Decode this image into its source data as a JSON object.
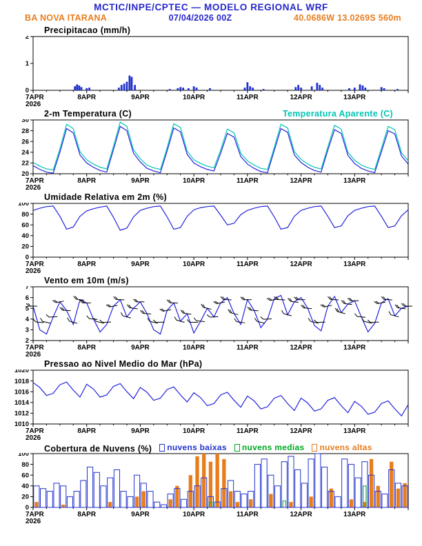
{
  "header": {
    "title": "MCTIC/INPE/CPTEC — MODELO REGIONAL WRF",
    "run": "07/04/2026 00Z",
    "station": "BA NOVA ITARANA",
    "location": "40.0686W 13.0269S 560m",
    "colors": {
      "blue": "#2525cc",
      "orange": "#e87d1e"
    }
  },
  "axis": {
    "x_major_labels": [
      "7APR",
      "8APR",
      "9APR",
      "10APR",
      "11APR",
      "12APR",
      "13APR"
    ],
    "year": "2026",
    "x_range_days": [
      0,
      7
    ]
  },
  "chart_data": [
    {
      "name": "precipitation",
      "title": "Precipitacao (mm/h)",
      "type": "bar",
      "ylim": [
        0,
        2
      ],
      "yticks": [
        0,
        1,
        2
      ],
      "series": [
        {
          "name": "precip",
          "color": "#2233cc",
          "points": [
            [
              0.78,
              0.15
            ],
            [
              0.82,
              0.22
            ],
            [
              0.86,
              0.18
            ],
            [
              0.9,
              0.12
            ],
            [
              1.0,
              0.08
            ],
            [
              1.05,
              0.1
            ],
            [
              1.6,
              0.1
            ],
            [
              1.65,
              0.2
            ],
            [
              1.7,
              0.25
            ],
            [
              1.75,
              0.32
            ],
            [
              1.8,
              0.55
            ],
            [
              1.84,
              0.5
            ],
            [
              1.9,
              0.2
            ],
            [
              2.55,
              0.05
            ],
            [
              2.7,
              0.08
            ],
            [
              2.75,
              0.12
            ],
            [
              2.8,
              0.1
            ],
            [
              2.9,
              0.08
            ],
            [
              3.0,
              0.15
            ],
            [
              3.05,
              0.1
            ],
            [
              3.3,
              0.08
            ],
            [
              3.95,
              0.1
            ],
            [
              4.0,
              0.3
            ],
            [
              4.05,
              0.15
            ],
            [
              4.1,
              0.1
            ],
            [
              4.3,
              0.05
            ],
            [
              4.9,
              0.12
            ],
            [
              4.95,
              0.2
            ],
            [
              5.0,
              0.1
            ],
            [
              5.2,
              0.15
            ],
            [
              5.3,
              0.28
            ],
            [
              5.35,
              0.2
            ],
            [
              5.4,
              0.1
            ],
            [
              5.9,
              0.08
            ],
            [
              6.0,
              0.1
            ],
            [
              6.1,
              0.22
            ],
            [
              6.15,
              0.18
            ],
            [
              6.2,
              0.1
            ],
            [
              6.5,
              0.12
            ],
            [
              6.55,
              0.08
            ],
            [
              6.8,
              0.05
            ]
          ]
        }
      ]
    },
    {
      "name": "temperature",
      "title": "2-m Temperatura (C)",
      "title2": "Temperatura Aparente (C)",
      "type": "line",
      "ylim": [
        20,
        30
      ],
      "yticks": [
        20,
        22,
        24,
        26,
        28,
        30
      ],
      "x_step_days": 0.125,
      "series": [
        {
          "name": "t2m",
          "color": "#2222dd",
          "values": [
            21.5,
            20.8,
            20.3,
            20.1,
            24.0,
            28.4,
            27.6,
            23.5,
            22.0,
            21.2,
            20.6,
            20.3,
            24.5,
            28.8,
            28.0,
            23.8,
            22.2,
            21.0,
            20.5,
            20.2,
            24.2,
            28.5,
            27.8,
            23.6,
            22.0,
            21.3,
            20.8,
            20.5,
            23.8,
            27.5,
            26.8,
            23.2,
            21.8,
            21.0,
            20.4,
            20.2,
            24.3,
            28.4,
            27.7,
            23.5,
            22.1,
            21.2,
            20.6,
            20.3,
            24.4,
            28.2,
            27.5,
            23.4,
            21.9,
            21.0,
            20.5,
            20.2,
            24.1,
            28.0,
            27.4,
            23.3,
            21.8
          ]
        },
        {
          "name": "apparent",
          "color": "#00c4b4",
          "values": [
            22.1,
            21.4,
            20.9,
            20.7,
            24.6,
            29.2,
            28.4,
            24.1,
            22.6,
            21.8,
            21.2,
            20.9,
            25.1,
            29.6,
            28.8,
            24.4,
            22.8,
            21.6,
            21.1,
            20.8,
            24.8,
            29.3,
            28.6,
            24.2,
            22.6,
            21.9,
            21.4,
            21.1,
            24.4,
            28.3,
            27.6,
            23.8,
            22.4,
            21.6,
            21.0,
            20.8,
            24.9,
            29.2,
            28.5,
            24.1,
            22.7,
            21.8,
            21.2,
            20.9,
            25.0,
            29.0,
            28.3,
            24.0,
            22.5,
            21.6,
            21.1,
            20.8,
            24.7,
            28.8,
            28.2,
            23.9,
            22.4
          ]
        }
      ]
    },
    {
      "name": "humidity",
      "title": "Umidade Relativa em 2m (%)",
      "type": "line",
      "ylim": [
        0,
        100
      ],
      "yticks": [
        0,
        20,
        40,
        60,
        80,
        100
      ],
      "x_step_days": 0.125,
      "series": [
        {
          "name": "rh2m",
          "color": "#2222dd",
          "values": [
            87,
            91,
            94,
            95,
            76,
            52,
            56,
            76,
            86,
            90,
            93,
            95,
            74,
            50,
            54,
            75,
            87,
            91,
            94,
            95,
            75,
            52,
            55,
            76,
            88,
            92,
            94,
            95,
            78,
            60,
            63,
            79,
            87,
            91,
            94,
            95,
            75,
            52,
            55,
            76,
            87,
            91,
            94,
            95,
            76,
            55,
            58,
            77,
            87,
            91,
            94,
            95,
            76,
            55,
            58,
            77,
            88
          ]
        }
      ]
    },
    {
      "name": "wind",
      "title": "Vento em 10m (m/s)",
      "type": "wind",
      "ylim": [
        2,
        7
      ],
      "yticks": [
        2,
        3,
        4,
        5,
        6,
        7
      ],
      "x_step_days": 0.125,
      "series": [
        {
          "name": "wind10m",
          "color": "#2222dd",
          "values": [
            5.2,
            3.0,
            2.6,
            4.2,
            5.6,
            4.8,
            3.5,
            5.8,
            5.5,
            4.0,
            2.8,
            3.5,
            5.2,
            5.8,
            4.2,
            5.0,
            5.6,
            4.5,
            3.0,
            2.6,
            4.8,
            5.5,
            3.8,
            4.5,
            2.7,
            3.8,
            5.0,
            4.2,
            5.5,
            6.0,
            4.5,
            3.5,
            5.8,
            4.8,
            3.2,
            4.0,
            5.9,
            6.2,
            4.4,
            5.6,
            6.0,
            5.0,
            3.4,
            2.9,
            5.2,
            6.1,
            4.6,
            5.4,
            5.7,
            4.2,
            2.8,
            3.6,
            5.5,
            5.9,
            4.3,
            5.0,
            5.2
          ]
        }
      ],
      "barb_dirs": [
        95,
        100,
        108,
        92,
        84,
        98,
        110,
        103,
        95,
        100,
        108,
        92,
        84,
        98,
        110,
        103,
        95,
        100,
        108,
        92,
        84,
        98,
        110,
        103,
        95,
        100,
        108,
        92,
        84,
        98,
        110,
        103,
        95,
        100,
        108,
        92,
        84,
        98,
        110,
        103,
        95,
        100,
        108,
        92,
        84,
        98,
        110,
        103,
        95,
        100,
        108,
        92,
        84,
        98,
        110,
        103,
        95
      ]
    },
    {
      "name": "pressure",
      "title": "Pressao ao Nivel Medio do Mar (hPa)",
      "type": "line",
      "ylim": [
        1010,
        1020
      ],
      "yticks": [
        1010,
        1012,
        1014,
        1016,
        1018,
        1020
      ],
      "x_step_days": 0.125,
      "series": [
        {
          "name": "mslp",
          "color": "#2222dd",
          "values": [
            1017.7,
            1016.8,
            1015.3,
            1015.7,
            1017.3,
            1017.8,
            1016.3,
            1015.0,
            1017.4,
            1016.5,
            1015.0,
            1015.4,
            1017.0,
            1017.5,
            1016.0,
            1014.7,
            1016.8,
            1015.9,
            1014.4,
            1014.8,
            1016.4,
            1016.9,
            1015.4,
            1014.1,
            1015.8,
            1014.9,
            1013.4,
            1013.8,
            1015.4,
            1015.9,
            1014.4,
            1013.1,
            1015.2,
            1014.3,
            1012.8,
            1013.2,
            1014.8,
            1015.3,
            1013.8,
            1012.5,
            1014.8,
            1013.9,
            1012.4,
            1012.8,
            1014.4,
            1014.9,
            1013.4,
            1012.1,
            1014.2,
            1013.3,
            1011.8,
            1012.2,
            1013.8,
            1014.3,
            1012.8,
            1011.5,
            1013.6
          ]
        }
      ]
    },
    {
      "name": "clouds",
      "title": "Cobertura de Nuvens (%)",
      "type": "cloudbar",
      "ylim": [
        0,
        100
      ],
      "yticks": [
        0,
        20,
        40,
        60,
        80,
        100
      ],
      "x_step_days": 0.125,
      "legend": [
        {
          "label": "nuvens baixas",
          "color": "#2233cc"
        },
        {
          "label": "nuvens medias",
          "color": "#00aa22"
        },
        {
          "label": "nuvens altas",
          "color": "#e87d1e"
        }
      ],
      "series": [
        {
          "name": "baixas",
          "color": "#2233cc",
          "style": "outline",
          "values": [
            40,
            35,
            30,
            45,
            40,
            20,
            30,
            50,
            75,
            65,
            40,
            55,
            70,
            30,
            20,
            60,
            45,
            30,
            10,
            5,
            25,
            35,
            15,
            30,
            40,
            55,
            20,
            10,
            35,
            50,
            30,
            25,
            30,
            80,
            90,
            60,
            40,
            85,
            95,
            70,
            45,
            90,
            100,
            75,
            30,
            20,
            90,
            80,
            55,
            85,
            60,
            30,
            25,
            70,
            45,
            40
          ]
        },
        {
          "name": "medias",
          "color": "#00aa22",
          "style": "outline",
          "values": [
            0,
            0,
            0,
            0,
            0,
            0,
            0,
            0,
            0,
            0,
            0,
            0,
            0,
            0,
            0,
            0,
            0,
            0,
            0,
            0,
            0,
            0,
            0,
            0,
            0,
            0,
            10,
            0,
            0,
            0,
            0,
            0,
            0,
            0,
            0,
            0,
            0,
            12,
            0,
            0,
            0,
            0,
            0,
            0,
            0,
            0,
            0,
            0,
            0,
            40,
            0,
            0,
            0,
            0,
            0,
            0
          ]
        },
        {
          "name": "altas",
          "color": "#e87d1e",
          "style": "fill",
          "values": [
            10,
            0,
            0,
            0,
            5,
            0,
            0,
            0,
            0,
            0,
            0,
            10,
            0,
            0,
            0,
            20,
            30,
            0,
            0,
            0,
            15,
            40,
            0,
            60,
            95,
            100,
            85,
            100,
            90,
            30,
            10,
            0,
            15,
            0,
            0,
            25,
            0,
            0,
            10,
            0,
            0,
            20,
            0,
            0,
            35,
            0,
            0,
            15,
            0,
            10,
            90,
            40,
            0,
            85,
            35,
            45
          ]
        }
      ]
    }
  ]
}
